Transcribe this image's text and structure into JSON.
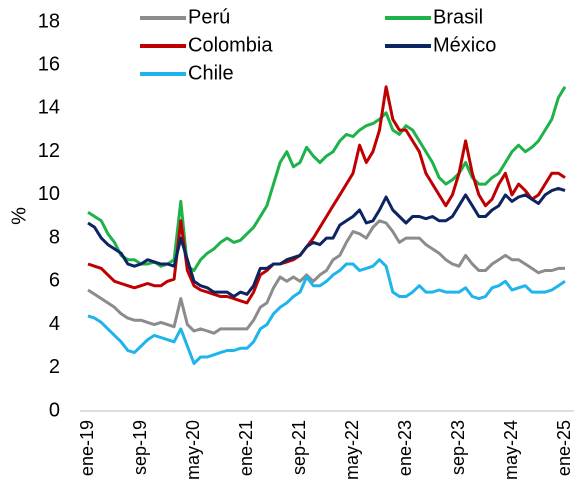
{
  "chart_data": {
    "type": "line",
    "y_label": "%",
    "categories": [
      "ene-19",
      null,
      null,
      null,
      null,
      null,
      null,
      null,
      "sep-19",
      null,
      null,
      null,
      null,
      null,
      null,
      null,
      "may-20",
      null,
      null,
      null,
      null,
      null,
      null,
      null,
      "ene-21",
      null,
      null,
      null,
      null,
      null,
      null,
      null,
      "sep-21",
      null,
      null,
      null,
      null,
      null,
      null,
      null,
      "may-22",
      null,
      null,
      null,
      null,
      null,
      null,
      null,
      "ene-23",
      null,
      null,
      null,
      null,
      null,
      null,
      null,
      "sep-23",
      null,
      null,
      null,
      null,
      null,
      null,
      null,
      "may-24",
      null,
      null,
      null,
      null,
      null,
      null,
      null,
      "ene-25"
    ],
    "ylim": [
      0,
      18
    ],
    "yticks": [
      0,
      2,
      4,
      6,
      8,
      10,
      12,
      14,
      16,
      18
    ],
    "grid": false,
    "series": [
      {
        "name": "Perú",
        "color": "#8c8c8c",
        "values": [
          5.6,
          5.4,
          5.2,
          5.0,
          4.8,
          4.5,
          4.3,
          4.2,
          4.2,
          4.1,
          4.0,
          4.1,
          4.0,
          3.9,
          5.2,
          4.0,
          3.7,
          3.8,
          3.7,
          3.6,
          3.8,
          3.8,
          3.8,
          3.8,
          3.8,
          4.2,
          4.8,
          5.0,
          5.7,
          6.2,
          6.0,
          6.2,
          6.0,
          6.3,
          6.0,
          6.3,
          6.5,
          7.0,
          7.2,
          7.8,
          8.3,
          8.2,
          8.0,
          8.5,
          8.8,
          8.7,
          8.3,
          7.8,
          8.0,
          8.0,
          8.0,
          7.7,
          7.5,
          7.3,
          7.0,
          6.8,
          6.7,
          7.2,
          6.8,
          6.5,
          6.5,
          6.8,
          7.0,
          7.2,
          7.0,
          7.0,
          6.8,
          6.6,
          6.4,
          6.5,
          6.5,
          6.6,
          6.6
        ]
      },
      {
        "name": "Brasil",
        "color": "#1fb24a",
        "values": [
          9.2,
          9.0,
          8.8,
          8.2,
          7.8,
          7.2,
          7.0,
          7.0,
          6.8,
          6.8,
          6.9,
          6.7,
          6.8,
          7.0,
          9.7,
          6.7,
          6.5,
          7.0,
          7.3,
          7.5,
          7.8,
          8.0,
          7.8,
          7.9,
          8.2,
          8.5,
          9.0,
          9.5,
          10.5,
          11.5,
          12.0,
          11.3,
          11.5,
          12.2,
          11.8,
          11.5,
          11.8,
          12.0,
          12.5,
          12.8,
          12.7,
          13.0,
          13.2,
          13.3,
          13.5,
          13.8,
          13.0,
          12.8,
          13.2,
          13.0,
          12.5,
          12.0,
          11.5,
          10.8,
          10.5,
          10.7,
          11.0,
          11.5,
          10.8,
          10.5,
          10.5,
          10.8,
          11.0,
          11.5,
          12.0,
          12.3,
          12.0,
          12.2,
          12.5,
          13.0,
          13.5,
          14.5,
          15.0
        ]
      },
      {
        "name": "Colombia",
        "color": "#c00000",
        "values": [
          6.8,
          6.7,
          6.6,
          6.3,
          6.0,
          5.9,
          5.8,
          5.7,
          5.8,
          5.9,
          5.8,
          5.8,
          6.0,
          6.1,
          8.8,
          6.5,
          5.8,
          5.6,
          5.5,
          5.4,
          5.3,
          5.3,
          5.2,
          5.1,
          5.0,
          5.5,
          6.3,
          6.5,
          6.8,
          6.8,
          6.9,
          7.0,
          7.2,
          7.6,
          8.0,
          8.5,
          9.0,
          9.5,
          10.0,
          10.5,
          11.0,
          12.3,
          11.5,
          12.0,
          13.0,
          15.0,
          13.5,
          13.0,
          13.0,
          12.5,
          12.0,
          11.0,
          10.5,
          10.0,
          9.5,
          10.0,
          11.0,
          12.5,
          11.0,
          10.0,
          9.5,
          9.8,
          10.5,
          11.0,
          10.0,
          10.5,
          10.2,
          9.8,
          10.0,
          10.5,
          11.0,
          11.0,
          10.8
        ]
      },
      {
        "name": "México",
        "color": "#0c2461",
        "values": [
          8.7,
          8.5,
          8.0,
          7.7,
          7.5,
          7.3,
          6.8,
          6.7,
          6.8,
          7.0,
          6.9,
          6.8,
          6.8,
          6.7,
          8.0,
          7.0,
          6.0,
          5.8,
          5.7,
          5.5,
          5.5,
          5.5,
          5.3,
          5.5,
          5.4,
          5.8,
          6.6,
          6.6,
          6.8,
          6.8,
          7.0,
          7.1,
          7.2,
          7.6,
          7.8,
          7.7,
          8.0,
          8.0,
          8.6,
          8.8,
          9.0,
          9.3,
          8.7,
          8.8,
          9.3,
          9.9,
          9.3,
          9.0,
          8.7,
          9.0,
          9.0,
          8.9,
          9.0,
          8.8,
          8.8,
          9.0,
          9.5,
          10.0,
          9.5,
          9.0,
          9.0,
          9.3,
          9.5,
          10.0,
          9.7,
          9.9,
          10.0,
          9.8,
          9.6,
          10.0,
          10.2,
          10.3,
          10.2
        ]
      },
      {
        "name": "Chile",
        "color": "#1fb4ec",
        "values": [
          4.4,
          4.3,
          4.1,
          3.8,
          3.5,
          3.2,
          2.8,
          2.7,
          3.0,
          3.3,
          3.5,
          3.4,
          3.3,
          3.2,
          3.8,
          3.0,
          2.2,
          2.5,
          2.5,
          2.6,
          2.7,
          2.8,
          2.8,
          2.9,
          2.9,
          3.2,
          3.8,
          4.0,
          4.5,
          4.8,
          5.0,
          5.3,
          5.5,
          6.2,
          5.8,
          5.8,
          6.0,
          6.3,
          6.5,
          6.8,
          6.8,
          6.5,
          6.6,
          6.7,
          7.0,
          6.7,
          5.5,
          5.3,
          5.3,
          5.5,
          5.8,
          5.5,
          5.5,
          5.6,
          5.5,
          5.5,
          5.5,
          5.7,
          5.3,
          5.2,
          5.3,
          5.7,
          5.8,
          6.0,
          5.6,
          5.7,
          5.8,
          5.5,
          5.5,
          5.5,
          5.6,
          5.8,
          6.0
        ]
      }
    ]
  }
}
